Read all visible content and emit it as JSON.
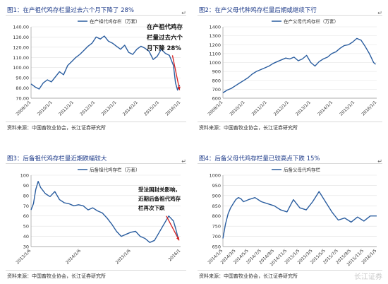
{
  "charts": [
    {
      "title": "图1：在产祖代鸡存栏量过去六个月下降了 28%",
      "source": "资料来源：中国畜牧业协会，长江证券研究所",
      "annotation": [
        "在产祖代鸡存",
        "栏量过去六个",
        "月下降 28%"
      ],
      "chart_data": {
        "type": "line",
        "legend": "在产祖代鸡存栏（万套）",
        "legend_position": "top-center",
        "ylim": [
          70,
          140
        ],
        "yticks": [
          "140.00",
          "130.00",
          "120.00",
          "110.00",
          "100.00",
          "90.00",
          "80.00",
          "70.00"
        ],
        "xticks": [
          "2009/1/1",
          "2010/1/1",
          "2011/1/1",
          "2012/1/1",
          "2013/1/1",
          "2014/1/1",
          "2015/1/1",
          "2016/1/1"
        ],
        "x_range": [
          2009.0,
          2016.35
        ],
        "x": [
          2009.0,
          2009.2,
          2009.4,
          2009.6,
          2009.8,
          2010.0,
          2010.2,
          2010.4,
          2010.6,
          2010.8,
          2011.0,
          2011.2,
          2011.4,
          2011.6,
          2011.8,
          2012.0,
          2012.2,
          2012.4,
          2012.6,
          2012.8,
          2013.0,
          2013.2,
          2013.4,
          2013.6,
          2013.8,
          2014.0,
          2014.2,
          2014.4,
          2014.6,
          2014.8,
          2015.0,
          2015.2,
          2015.4,
          2015.6,
          2015.8,
          2016.0,
          2016.1,
          2016.2,
          2016.3
        ],
        "y": [
          84,
          81,
          79,
          85,
          88,
          86,
          91,
          96,
          93,
          102,
          106,
          110,
          113,
          117,
          121,
          124,
          130,
          128,
          131,
          126,
          124,
          121,
          118,
          122,
          115,
          113,
          118,
          121,
          119,
          116,
          108,
          111,
          118,
          114,
          112,
          102,
          85,
          78,
          83
        ],
        "arrow": true
      }
    },
    {
      "title": "图2：在产父母代种鸡存栏量后期或继续下行",
      "source": "资料来源：中国畜牧业协会，长江证券研究所",
      "chart_data": {
        "type": "line",
        "legend": "在产父母代鸡存栏（万套）",
        "legend_position": "top-center",
        "ylim": [
          600,
          1400
        ],
        "yticks": [
          "1400",
          "1300",
          "1200",
          "1100",
          "1000",
          "900",
          "800",
          "700",
          "600"
        ],
        "xticks": [
          "2009/1/1",
          "2010/1/1",
          "2011/1/1",
          "2012/1/1",
          "2013/1/1",
          "2014/1/1",
          "2015/1/1",
          "2016/1/1"
        ],
        "x_range": [
          2009.0,
          2016.35
        ],
        "x": [
          2009.0,
          2009.2,
          2009.4,
          2009.6,
          2009.8,
          2010.0,
          2010.2,
          2010.4,
          2010.6,
          2010.8,
          2011.0,
          2011.2,
          2011.4,
          2011.6,
          2011.8,
          2012.0,
          2012.2,
          2012.4,
          2012.6,
          2012.8,
          2013.0,
          2013.2,
          2013.4,
          2013.6,
          2013.8,
          2014.0,
          2014.2,
          2014.4,
          2014.6,
          2014.8,
          2015.0,
          2015.2,
          2015.4,
          2015.6,
          2015.8,
          2016.0,
          2016.1,
          2016.2,
          2016.3
        ],
        "y": [
          660,
          690,
          710,
          740,
          770,
          800,
          830,
          870,
          900,
          920,
          940,
          960,
          990,
          1010,
          1030,
          1050,
          1040,
          1060,
          1020,
          1040,
          1080,
          1000,
          960,
          1010,
          1040,
          1060,
          1100,
          1120,
          1160,
          1190,
          1200,
          1230,
          1270,
          1250,
          1180,
          1100,
          1050,
          1000,
          980
        ],
        "arrow": false
      }
    },
    {
      "title": "图3：后备祖代鸡存栏量近期跌幅较大",
      "source": "资料来源：中国畜牧业协会，长江证券研究所",
      "annotation": [
        "受法国封关影响，",
        "近期后备祖代鸡存",
        "栏再次下跌"
      ],
      "chart_data": {
        "type": "line",
        "legend": "后备祖代鸡存栏（万套）",
        "legend_position": "top-center",
        "ylim": [
          30,
          100
        ],
        "yticks": [
          "100",
          "90",
          "80",
          "70",
          "60",
          "50",
          "40",
          "30"
        ],
        "xticks": [
          "2013/1/6",
          "2014/1/6",
          "2015/1/6",
          "2016/1"
        ],
        "x_range": [
          2013.0,
          2016.15
        ],
        "x": [
          2013.0,
          2013.05,
          2013.1,
          2013.15,
          2013.2,
          2013.25,
          2013.3,
          2013.4,
          2013.5,
          2013.6,
          2013.7,
          2013.8,
          2013.9,
          2014.0,
          2014.1,
          2014.2,
          2014.3,
          2014.4,
          2014.5,
          2014.6,
          2014.7,
          2014.8,
          2014.9,
          2015.0,
          2015.1,
          2015.2,
          2015.3,
          2015.4,
          2015.5,
          2015.6,
          2015.7,
          2015.8,
          2015.9,
          2016.0,
          2016.05,
          2016.1
        ],
        "y": [
          66,
          72,
          86,
          94,
          88,
          85,
          82,
          79,
          84,
          76,
          73,
          72,
          70,
          71,
          70,
          66,
          68,
          65,
          63,
          58,
          52,
          45,
          40,
          42,
          44,
          45,
          40,
          38,
          34,
          36,
          44,
          52,
          60,
          55,
          47,
          38
        ],
        "arrow": true
      }
    },
    {
      "title": "图4：后备父母代鸡存栏量已较高点下跌 15%",
      "source": "资料来源：中国畜牧业协会，长江证券研究所",
      "chart_data": {
        "type": "line",
        "legend": "后备父母代鸡存栏",
        "legend_position": "top-center",
        "ylim": [
          650,
          1000
        ],
        "yticks": [
          "1000",
          "950",
          "900",
          "850",
          "800",
          "750",
          "700",
          "650"
        ],
        "xticks": [
          "2014/1/5",
          "2014/3/5",
          "2014/5/5",
          "2014/7/5",
          "2014/9/5",
          "2014/11/5",
          "2015/1/5",
          "2015/3/5",
          "2015/5/5",
          "2015/7/5",
          "2015/9/5",
          "2015/11/5",
          "2016/1/5"
        ],
        "x_range": [
          0,
          12
        ],
        "x": [
          0,
          0.2,
          0.4,
          0.6,
          0.8,
          1.0,
          1.2,
          1.4,
          1.6,
          1.8,
          2.0,
          2.5,
          3.0,
          3.5,
          4.0,
          4.5,
          5.0,
          5.5,
          6.0,
          6.5,
          7.0,
          7.5,
          8.0,
          8.5,
          9.0,
          9.5,
          10.0,
          10.5,
          11.0,
          11.5,
          12.0
        ],
        "y": [
          690,
          760,
          810,
          840,
          860,
          880,
          890,
          885,
          870,
          875,
          880,
          890,
          870,
          860,
          850,
          830,
          820,
          880,
          840,
          830,
          870,
          920,
          870,
          820,
          780,
          790,
          770,
          795,
          775,
          800,
          800
        ],
        "arrow": false
      }
    }
  ],
  "watermark": "长江证券"
}
